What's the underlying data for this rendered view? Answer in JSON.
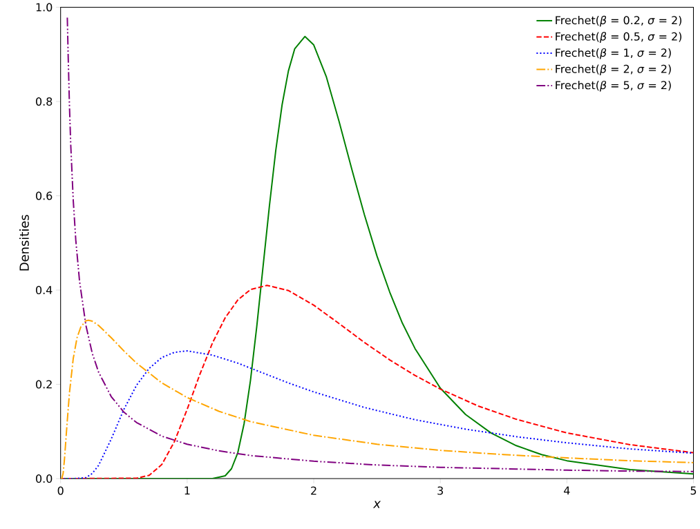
{
  "chart_data": {
    "type": "line",
    "xlabel": "x",
    "ylabel": "Densities",
    "legend": "top right",
    "xlim": [
      0,
      5
    ],
    "ylim": [
      0,
      1
    ],
    "xticks": [
      0,
      1,
      2,
      3,
      4,
      5
    ],
    "yticks": [
      {
        "value": 0,
        "label": "0.0"
      },
      {
        "value": 0.2,
        "label": "0.2"
      },
      {
        "value": 0.4,
        "label": "0.4"
      },
      {
        "value": 0.6,
        "label": "0.6"
      },
      {
        "value": 0.8,
        "label": "0.8"
      },
      {
        "value": 1.0,
        "label": "1.0"
      }
    ],
    "series": [
      {
        "name": "Frechet(*β* = 0.2, *σ* = 2)",
        "color": "#008000",
        "line_style": "solid",
        "x": [
          0,
          1.2,
          1.3,
          1.35,
          1.4,
          1.45,
          1.5,
          1.55,
          1.6,
          1.65,
          1.7,
          1.75,
          1.8,
          1.85,
          1.93,
          2.0,
          2.1,
          2.2,
          2.3,
          2.4,
          2.5,
          2.6,
          2.7,
          2.8,
          3.0,
          3.2,
          3.4,
          3.6,
          3.8,
          4.0,
          4.5,
          5.0
        ],
        "values": [
          0,
          0,
          0.006,
          0.021,
          0.055,
          0.117,
          0.208,
          0.323,
          0.451,
          0.579,
          0.696,
          0.793,
          0.865,
          0.912,
          0.938,
          0.92,
          0.852,
          0.758,
          0.657,
          0.56,
          0.472,
          0.396,
          0.33,
          0.276,
          0.192,
          0.136,
          0.097,
          0.07,
          0.051,
          0.038,
          0.019,
          0.01
        ]
      },
      {
        "name": "Frechet(*β* = 0.5, *σ* = 2)",
        "color": "#ff0000",
        "line_style": "dashed",
        "x": [
          0,
          0.6,
          0.7,
          0.8,
          0.9,
          1.0,
          1.1,
          1.2,
          1.3,
          1.4,
          1.5,
          1.63,
          1.8,
          2.0,
          2.2,
          2.4,
          2.6,
          2.8,
          3.0,
          3.3,
          3.6,
          4.0,
          4.5,
          5.0
        ],
        "values": [
          0,
          0.001,
          0.007,
          0.03,
          0.079,
          0.147,
          0.221,
          0.288,
          0.341,
          0.379,
          0.401,
          0.41,
          0.399,
          0.368,
          0.329,
          0.289,
          0.252,
          0.219,
          0.19,
          0.154,
          0.126,
          0.097,
          0.072,
          0.055
        ]
      },
      {
        "name": "Frechet(*β* = 1, *σ* = 2)",
        "color": "#0000ff",
        "line_style": "dotted",
        "x": [
          0,
          0.1,
          0.2,
          0.25,
          0.3,
          0.4,
          0.5,
          0.6,
          0.7,
          0.8,
          0.9,
          1.0,
          1.2,
          1.4,
          1.6,
          1.8,
          2.0,
          2.4,
          2.8,
          3.2,
          3.6,
          4.0,
          4.5,
          5.0
        ],
        "values": [
          0,
          0,
          0.002,
          0.011,
          0.028,
          0.084,
          0.147,
          0.198,
          0.234,
          0.257,
          0.268,
          0.271,
          0.262,
          0.245,
          0.224,
          0.203,
          0.184,
          0.151,
          0.125,
          0.105,
          0.089,
          0.076,
          0.063,
          0.054
        ]
      },
      {
        "name": "Frechet(*β* = 2, *σ* = 2)",
        "color": "#ffa500",
        "line_style": "dashdot",
        "x": [
          0,
          0.01,
          0.02,
          0.03,
          0.05,
          0.07,
          0.1,
          0.13,
          0.16,
          0.2,
          0.22,
          0.25,
          0.3,
          0.4,
          0.5,
          0.6,
          0.8,
          1.0,
          1.25,
          1.5,
          2.0,
          2.5,
          3.0,
          3.5,
          4.0,
          4.5,
          5.0
        ],
        "values": [
          0,
          0.001,
          0.011,
          0.039,
          0.113,
          0.182,
          0.255,
          0.299,
          0.322,
          0.335,
          0.336,
          0.334,
          0.325,
          0.299,
          0.271,
          0.245,
          0.203,
          0.172,
          0.143,
          0.121,
          0.092,
          0.073,
          0.06,
          0.051,
          0.044,
          0.038,
          0.034
        ]
      },
      {
        "name": "Frechet(*β* = 5, *σ* = 2)",
        "color": "#800080",
        "line_style": "dashdotdot",
        "x": [
          0.053,
          0.06,
          0.07,
          0.08,
          0.1,
          0.12,
          0.15,
          0.2,
          0.25,
          0.3,
          0.4,
          0.5,
          0.6,
          0.8,
          1.0,
          1.25,
          1.5,
          2.0,
          2.5,
          3.0,
          3.5,
          4.0,
          4.5,
          5.0
        ],
        "values": [
          0.978,
          0.895,
          0.791,
          0.709,
          0.59,
          0.506,
          0.418,
          0.325,
          0.266,
          0.226,
          0.174,
          0.141,
          0.119,
          0.09,
          0.073,
          0.059,
          0.049,
          0.037,
          0.029,
          0.024,
          0.021,
          0.018,
          0.016,
          0.015
        ]
      }
    ]
  }
}
